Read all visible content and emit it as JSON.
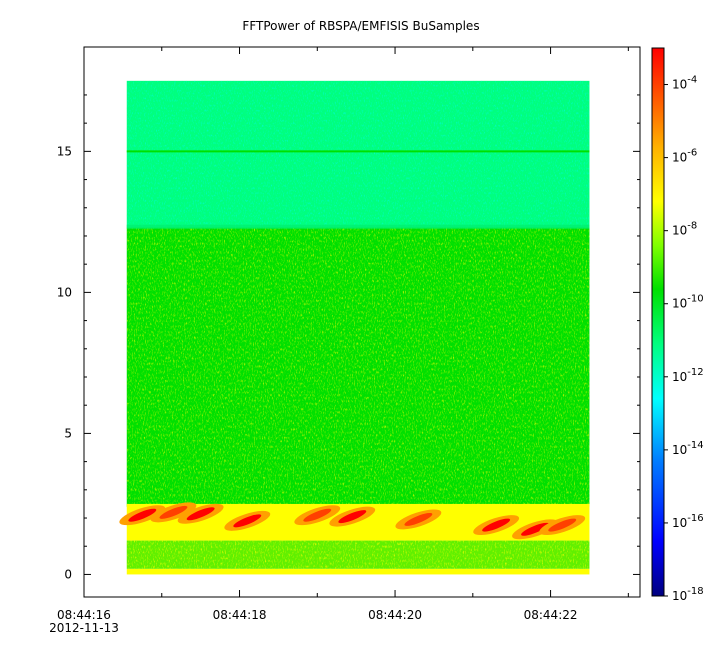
{
  "chart_data": {
    "type": "heatmap",
    "title": "FFTPower of RBSPA/EMFISIS  BuSamples",
    "xlabel": "",
    "ylabel": "",
    "x_range_seconds": [
      "08:44:16.00",
      "08:44:23.15"
    ],
    "data_x_range": [
      "08:44:16.55",
      "08:44:22.50"
    ],
    "ylim": [
      -0.8,
      18.7
    ],
    "data_y_range": [
      0,
      17.5
    ],
    "x_ticks": [
      {
        "value": "08:44:16",
        "label": "08:44:16",
        "sublabel": "2012-11-13"
      },
      {
        "value": "08:44:18",
        "label": "08:44:18",
        "sublabel": ""
      },
      {
        "value": "08:44:20",
        "label": "08:44:20",
        "sublabel": ""
      },
      {
        "value": "08:44:22",
        "label": "08:44:22",
        "sublabel": ""
      }
    ],
    "y_ticks": [
      "0",
      "5",
      "10",
      "15"
    ],
    "y_tick_values": [
      0,
      5,
      10,
      15
    ],
    "colorbar": {
      "scale": "log",
      "range": [
        1e-18,
        0.001
      ],
      "tick_exponents": [
        "-4",
        "-6",
        "-8",
        "-10",
        "-12",
        "-14",
        "-16",
        "-18"
      ],
      "tick_base": "10",
      "colors": [
        "#00007f",
        "#0000ff",
        "#007fff",
        "#00ffff",
        "#00ff7f",
        "#00e000",
        "#ffff00",
        "#ff7f00",
        "#ff0000"
      ]
    },
    "bands": [
      {
        "f_min": 12.3,
        "f_max": 17.5,
        "level": "1e-12",
        "color": "#00ff7f"
      },
      {
        "f_min": 2.4,
        "f_max": 12.3,
        "level": "1e-10",
        "color": "#00e000"
      },
      {
        "f_min": 1.2,
        "f_max": 2.5,
        "level": "1e-7",
        "color": "#ffff00"
      },
      {
        "f_min": 0.0,
        "f_max": 0.2,
        "level": "1e-8",
        "color": "#ffff00"
      }
    ],
    "line_features": [
      {
        "frequency": 15.0,
        "color": "#00e000"
      }
    ],
    "bursts": [
      {
        "t": 16.75,
        "f": 2.1,
        "color": "#ff0000"
      },
      {
        "t": 17.15,
        "f": 2.2,
        "color": "#ff4000"
      },
      {
        "t": 17.5,
        "f": 2.15,
        "color": "#ff0000"
      },
      {
        "t": 18.1,
        "f": 1.9,
        "color": "#ff0000"
      },
      {
        "t": 19.0,
        "f": 2.1,
        "color": "#ff4000"
      },
      {
        "t": 19.45,
        "f": 2.05,
        "color": "#ff0000"
      },
      {
        "t": 20.3,
        "f": 1.95,
        "color": "#ff4000"
      },
      {
        "t": 21.3,
        "f": 1.75,
        "color": "#ff0000"
      },
      {
        "t": 21.8,
        "f": 1.6,
        "color": "#ff0000"
      },
      {
        "t": 22.15,
        "f": 1.75,
        "color": "#ff4000"
      }
    ]
  }
}
